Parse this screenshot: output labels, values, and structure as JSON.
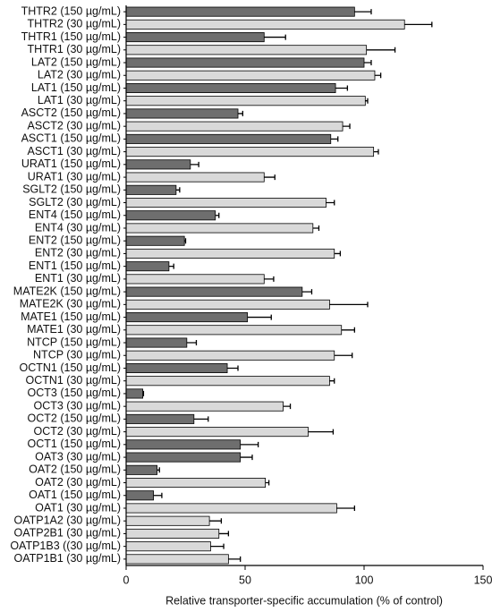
{
  "chart_data": {
    "type": "bar",
    "orientation": "horizontal",
    "x_label": "Relative transporter-specific accumulation (% of control)",
    "categories": [
      "THTR2 (150 µg/mL)",
      "THTR2 (30 µg/mL)",
      "THTR1 (150 µg/mL)",
      "THTR1 (30 µg/mL)",
      "LAT2 (150 µg/mL)",
      "LAT2 (30 µg/mL)",
      "LAT1 (150 µg/mL)",
      "LAT1 (30 µg/mL)",
      "ASCT2 (150 µg/mL)",
      "ASCT2 (30 µg/mL)",
      "ASCT1 (150 µg/mL)",
      "ASCT1 (30 µg/mL)",
      "URAT1 (150 µg/mL)",
      "URAT1 (30 µg/mL)",
      "SGLT2 (150 µg/mL)",
      "SGLT2 (30 µg/mL)",
      "ENT4 (150 µg/mL)",
      "ENT4 (30 µg/mL)",
      "ENT2 (150 µg/mL)",
      "ENT2 (30 µg/mL)",
      "ENT1 (150 µg/mL)",
      "ENT1 (30 µg/mL)",
      "MATE2K (150 µg/mL)",
      "MATE2K (30 µg/mL)",
      "MATE1 (150 µg/mL)",
      "MATE1 (30 µg/mL)",
      "NTCP (150 µg/mL)",
      "NTCP (30 µg/mL)",
      "OCTN1 (150 µg/mL)",
      "OCTN1 (30 µg/mL)",
      "OCT3 (150 µg/mL)",
      "OCT3 (30 µg/mL)",
      "OCT2 (150 µg/mL)",
      "OCT2 (30 µg/mL)",
      "OCT1 (150 µg/mL)",
      "OAT3 (30 µg/mL)",
      "OAT2 (150 µg/mL)",
      "OAT2 (30 µg/mL)",
      "OAT1 (150 µg/mL)",
      "OAT1 (30 µg/mL)",
      "OATP1A2 (30 µg/mL)",
      "OATP2B1 (30 µg/mL)",
      "OATP1B3 ((30 µg/mL)",
      "OATP1B1 (30 µg/mL)"
    ],
    "values": [
      96,
      117,
      58,
      101,
      100,
      104.5,
      88,
      100.5,
      47,
      91,
      86,
      104,
      27,
      58,
      21,
      84,
      37.5,
      78.5,
      24.5,
      87.5,
      18,
      58,
      74,
      85.5,
      51,
      90.5,
      25.5,
      87.5,
      42.5,
      85.5,
      7,
      66,
      28.5,
      76.5,
      48,
      48,
      13,
      58.5,
      11.5,
      88.5,
      35,
      39,
      35.5,
      43
    ],
    "errors": [
      7,
      11.5,
      9,
      12,
      3,
      2.5,
      5,
      1,
      2,
      3,
      3,
      2,
      3.5,
      4.5,
      1.5,
      3.5,
      1.5,
      2.5,
      0.5,
      2.5,
      2,
      4,
      4,
      16,
      10,
      5.5,
      4,
      7.5,
      4.5,
      2,
      0.3,
      3,
      6,
      10.5,
      7.5,
      5,
      1,
      1.5,
      3.5,
      7.5,
      5,
      4,
      5.5,
      5
    ],
    "colors": [
      "#6e6e6e",
      "#d9d9d9",
      "#6e6e6e",
      "#d9d9d9",
      "#6e6e6e",
      "#d9d9d9",
      "#6e6e6e",
      "#d9d9d9",
      "#6e6e6e",
      "#d9d9d9",
      "#6e6e6e",
      "#d9d9d9",
      "#6e6e6e",
      "#d9d9d9",
      "#6e6e6e",
      "#d9d9d9",
      "#6e6e6e",
      "#d9d9d9",
      "#6e6e6e",
      "#d9d9d9",
      "#6e6e6e",
      "#d9d9d9",
      "#6e6e6e",
      "#d9d9d9",
      "#6e6e6e",
      "#d9d9d9",
      "#6e6e6e",
      "#d9d9d9",
      "#6e6e6e",
      "#d9d9d9",
      "#6e6e6e",
      "#d9d9d9",
      "#6e6e6e",
      "#d9d9d9",
      "#6e6e6e",
      "#6e6e6e",
      "#6e6e6e",
      "#d9d9d9",
      "#6e6e6e",
      "#d9d9d9",
      "#d9d9d9",
      "#d9d9d9",
      "#d9d9d9",
      "#d9d9d9"
    ],
    "xlim": [
      0,
      150
    ],
    "xticks": [
      0,
      50,
      100,
      150
    ],
    "grid": false
  }
}
